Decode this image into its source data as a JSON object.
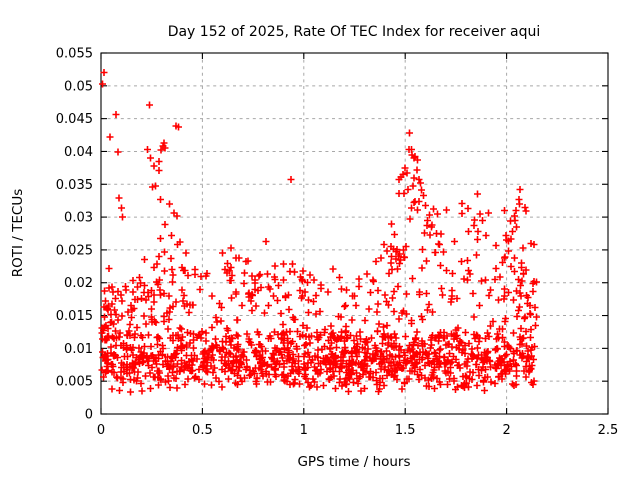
{
  "window": {
    "background": "#ffffff"
  },
  "chart_data": {
    "type": "scatter",
    "title": "Day 152 of 2025, Rate Of TEC Index for receiver aqui",
    "xlabel": "GPS time / hours",
    "ylabel": "ROTI / TECUs",
    "xlim": [
      0,
      2.5
    ],
    "ylim": [
      0,
      0.055
    ],
    "xticks": {
      "values": [
        0,
        0.5,
        1,
        1.5,
        2,
        2.5
      ],
      "labels": [
        "0",
        "0.5",
        "1",
        "1.5",
        "2",
        "2.5"
      ]
    },
    "yticks": {
      "values": [
        0,
        0.005,
        0.01,
        0.015,
        0.02,
        0.025,
        0.03,
        0.035,
        0.04,
        0.045,
        0.05,
        0.055
      ],
      "labels": [
        "0",
        "0.005",
        "0.01",
        "0.015",
        "0.02",
        "0.025",
        "0.03",
        "0.035",
        "0.04",
        "0.045",
        "0.05",
        "0.055"
      ]
    },
    "grid": true,
    "legend": "none",
    "marker": {
      "shape": "plus",
      "color": "#ff0000",
      "size": 7,
      "stroke_width": 1.6
    },
    "colors": {
      "grid": "#a8a8a8",
      "border": "#000000",
      "text": "#000000"
    },
    "data_x_extent": [
      0.004,
      2.148
    ],
    "notable_points": [
      [
        0.015,
        0.052
      ],
      [
        0.008,
        0.0503
      ],
      [
        0.045,
        0.0422
      ],
      [
        0.075,
        0.0456
      ],
      [
        0.085,
        0.0399
      ],
      [
        0.089,
        0.0329
      ],
      [
        0.101,
        0.0314
      ],
      [
        0.106,
        0.03
      ],
      [
        0.24,
        0.0471
      ],
      [
        0.229,
        0.0403
      ],
      [
        0.245,
        0.039
      ],
      [
        0.262,
        0.0378
      ],
      [
        0.253,
        0.0346
      ],
      [
        0.285,
        0.0385
      ],
      [
        0.285,
        0.0371
      ],
      [
        0.269,
        0.0347
      ],
      [
        0.295,
        0.0402
      ],
      [
        0.305,
        0.0408
      ],
      [
        0.31,
        0.0413
      ],
      [
        0.315,
        0.0405
      ],
      [
        0.371,
        0.0439
      ],
      [
        0.383,
        0.0437
      ],
      [
        0.337,
        0.032
      ],
      [
        0.36,
        0.0306
      ],
      [
        0.375,
        0.0302
      ],
      [
        0.39,
        0.0262
      ],
      [
        0.378,
        0.0258
      ],
      [
        0.345,
        0.0237
      ],
      [
        0.414,
        0.0219
      ],
      [
        0.353,
        0.0201
      ],
      [
        0.4,
        0.0223
      ],
      [
        0.42,
        0.0245
      ],
      [
        0.6,
        0.0245
      ],
      [
        0.64,
        0.0253
      ],
      [
        0.666,
        0.0238
      ],
      [
        0.68,
        0.0238
      ],
      [
        0.707,
        0.0215
      ],
      [
        0.715,
        0.0232
      ],
      [
        0.724,
        0.0233
      ],
      [
        0.813,
        0.0263
      ],
      [
        0.822,
        0.0213
      ],
      [
        0.9,
        0.0204
      ],
      [
        0.937,
        0.0357
      ],
      [
        0.953,
        0.0216
      ],
      [
        0.99,
        0.0205
      ],
      [
        1.03,
        0.0212
      ],
      [
        1.05,
        0.0204
      ],
      [
        1.355,
        0.0232
      ],
      [
        1.38,
        0.0238
      ],
      [
        1.395,
        0.0258
      ],
      [
        1.41,
        0.0248
      ],
      [
        1.43,
        0.023
      ],
      [
        1.455,
        0.0236
      ],
      [
        1.468,
        0.0241
      ],
      [
        1.47,
        0.0357
      ],
      [
        1.48,
        0.0361
      ],
      [
        1.49,
        0.0365
      ],
      [
        1.5,
        0.0375
      ],
      [
        1.51,
        0.0367
      ],
      [
        1.518,
        0.0403
      ],
      [
        1.52,
        0.0428
      ],
      [
        1.53,
        0.0403
      ],
      [
        1.543,
        0.039
      ],
      [
        1.548,
        0.0392
      ],
      [
        1.559,
        0.0372
      ],
      [
        1.567,
        0.0357
      ],
      [
        1.567,
        0.0324
      ],
      [
        1.543,
        0.0322
      ],
      [
        1.56,
        0.0311
      ],
      [
        1.58,
        0.0341
      ],
      [
        1.59,
        0.0333
      ],
      [
        1.6,
        0.0318
      ],
      [
        1.61,
        0.0295
      ],
      [
        1.62,
        0.0303
      ],
      [
        1.63,
        0.0285
      ],
      [
        1.64,
        0.0312
      ],
      [
        1.655,
        0.0275
      ],
      [
        1.66,
        0.0305
      ],
      [
        1.67,
        0.0258
      ],
      [
        1.69,
        0.0247
      ],
      [
        1.78,
        0.0321
      ],
      [
        1.81,
        0.0313
      ],
      [
        1.84,
        0.0287
      ],
      [
        1.86,
        0.0278
      ],
      [
        1.87,
        0.0305
      ],
      [
        1.88,
        0.0295
      ],
      [
        1.99,
        0.031
      ],
      [
        2.0,
        0.0265
      ],
      [
        2.01,
        0.0248
      ],
      [
        2.02,
        0.0294
      ],
      [
        2.03,
        0.0278
      ],
      [
        2.04,
        0.0302
      ],
      [
        2.046,
        0.031
      ],
      [
        2.05,
        0.0285
      ],
      [
        2.06,
        0.0327
      ],
      [
        2.067,
        0.0342
      ],
      [
        2.08,
        0.0253
      ],
      [
        2.095,
        0.0309
      ],
      [
        2.12,
        0.026
      ],
      [
        2.135,
        0.0258
      ]
    ],
    "cloud_model": {
      "seed": 7,
      "y_clamp": [
        0.0028,
        0.0545
      ],
      "bands": [
        {
          "n": 1000,
          "x": [
            0.004,
            2.148
          ],
          "y0": 0.0033,
          "dy": 0.0095,
          "mode": "tri"
        },
        {
          "n": 235,
          "x": [
            0.004,
            2.148
          ],
          "y0": 0.0115,
          "dy": 0.0075,
          "k": 2.0,
          "mode": "pow"
        },
        {
          "n": 70,
          "x": [
            0.02,
            2.14
          ],
          "y0": 0.018,
          "dy": 0.0062,
          "k": 2.2,
          "mode": "pow"
        }
      ],
      "plumes": [
        {
          "n": 14,
          "cx": 0.07,
          "cy": 0.0145,
          "sx": 0.045,
          "sy": 0.0015
        },
        {
          "n": 10,
          "cx": 0.14,
          "cy": 0.018,
          "sx": 0.04,
          "sy": 0.0018
        },
        {
          "n": 14,
          "cx": 0.28,
          "cy": 0.019,
          "sx": 0.05,
          "sy": 0.0028
        },
        {
          "n": 6,
          "cx": 0.3,
          "cy": 0.027,
          "sx": 0.03,
          "sy": 0.0025
        },
        {
          "n": 8,
          "cx": 0.42,
          "cy": 0.0185,
          "sx": 0.05,
          "sy": 0.002
        },
        {
          "n": 10,
          "cx": 0.66,
          "cy": 0.0205,
          "sx": 0.05,
          "sy": 0.002
        },
        {
          "n": 8,
          "cx": 0.8,
          "cy": 0.021,
          "sx": 0.05,
          "sy": 0.0022
        },
        {
          "n": 8,
          "cx": 0.91,
          "cy": 0.0185,
          "sx": 0.05,
          "sy": 0.0018
        },
        {
          "n": 6,
          "cx": 1.02,
          "cy": 0.019,
          "sx": 0.04,
          "sy": 0.0015
        },
        {
          "n": 12,
          "cx": 1.39,
          "cy": 0.021,
          "sx": 0.06,
          "sy": 0.0022
        },
        {
          "n": 10,
          "cx": 1.48,
          "cy": 0.027,
          "sx": 0.035,
          "sy": 0.0028
        },
        {
          "n": 10,
          "cx": 1.53,
          "cy": 0.034,
          "sx": 0.03,
          "sy": 0.0028
        },
        {
          "n": 10,
          "cx": 1.62,
          "cy": 0.028,
          "sx": 0.04,
          "sy": 0.0028
        },
        {
          "n": 8,
          "cx": 1.73,
          "cy": 0.0225,
          "sx": 0.05,
          "sy": 0.0022
        },
        {
          "n": 10,
          "cx": 1.84,
          "cy": 0.0285,
          "sx": 0.045,
          "sy": 0.0025
        },
        {
          "n": 8,
          "cx": 1.95,
          "cy": 0.022,
          "sx": 0.05,
          "sy": 0.0025
        },
        {
          "n": 12,
          "cx": 2.06,
          "cy": 0.026,
          "sx": 0.035,
          "sy": 0.0035
        },
        {
          "n": 8,
          "cx": 2.1,
          "cy": 0.017,
          "sx": 0.035,
          "sy": 0.0025
        }
      ]
    }
  }
}
